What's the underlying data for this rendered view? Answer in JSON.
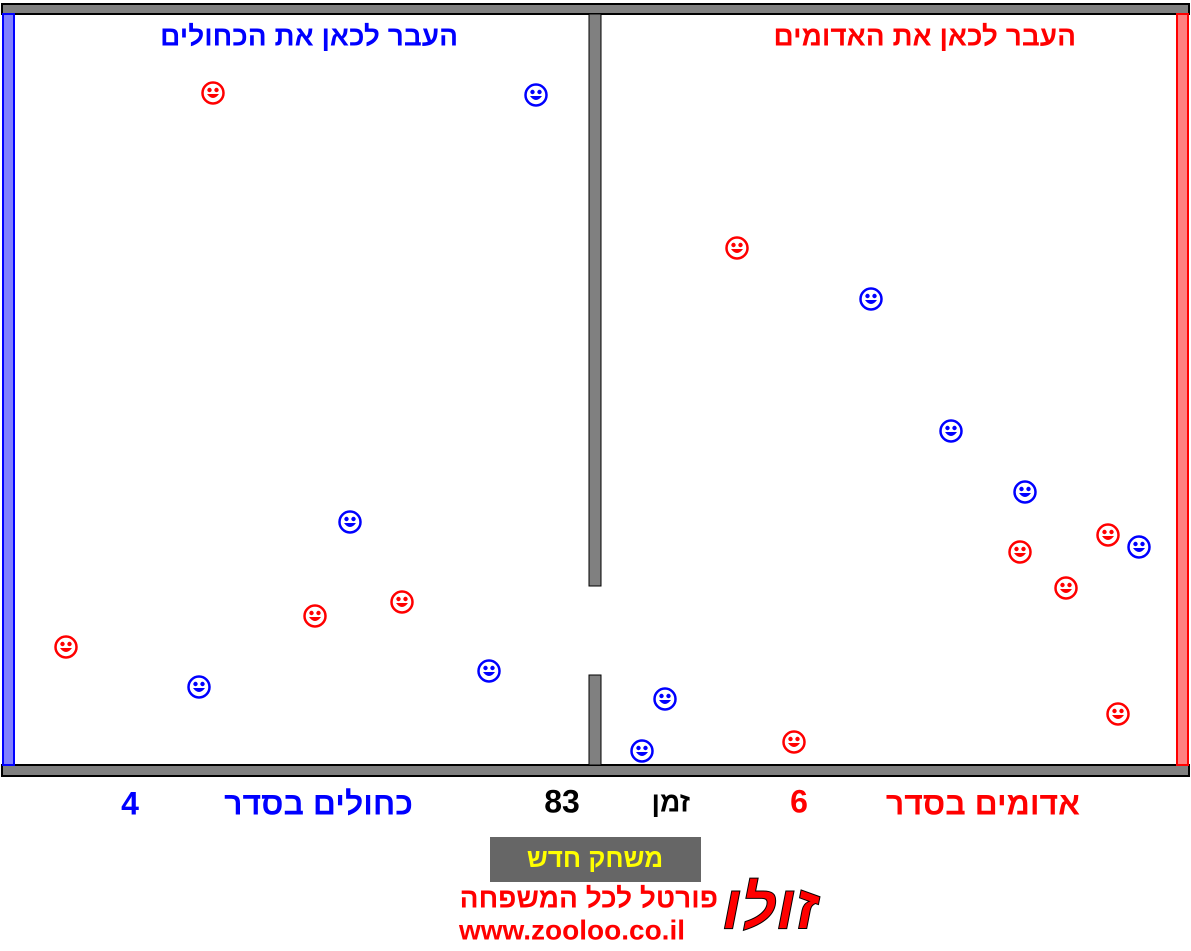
{
  "field": {
    "blue_target": "העבר לכאן את הכחולים",
    "red_target": "העבר לכאן את האדומים"
  },
  "status": {
    "blue_label": "כחולים בסדר",
    "blue_count": 4,
    "time_label": "זמן",
    "time": 83,
    "red_label": "אדומים בסדר",
    "red_count": 6
  },
  "button": "משחק חדש",
  "logo": {
    "name": "זולו",
    "tagline": "פורטל לכל המשפחה",
    "url": "www.zooloo.co.il"
  }
}
